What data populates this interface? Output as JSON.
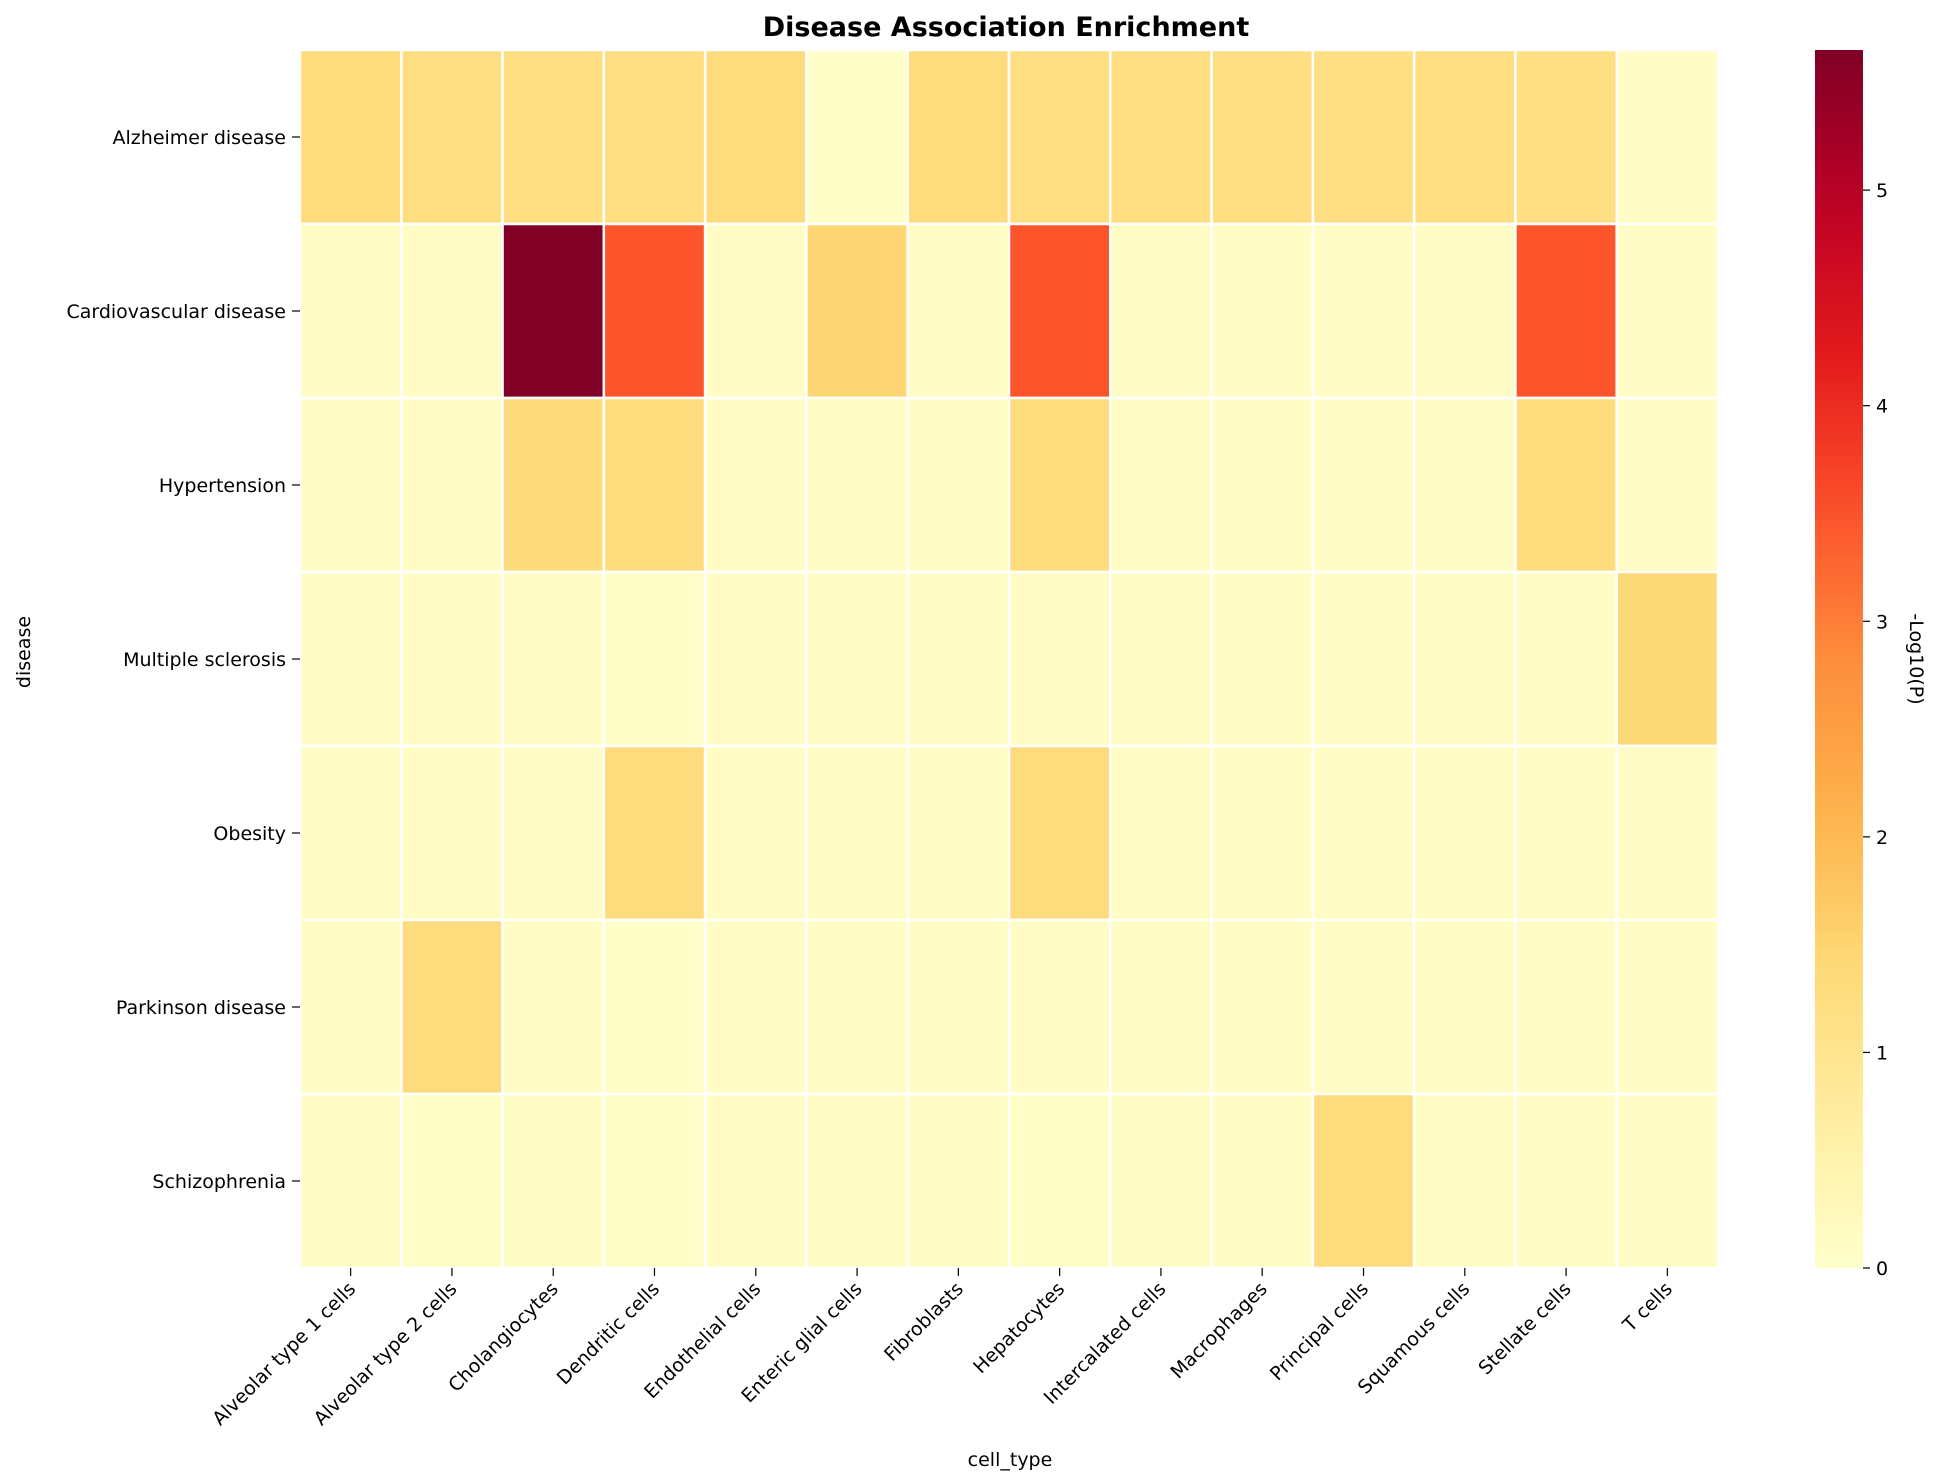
{
  "chart_data": {
    "type": "heatmap",
    "title": "Disease Association Enrichment",
    "xlabel": "cell_type",
    "ylabel": "disease",
    "x": [
      "Alveolar type 1 cells",
      "Alveolar type 2 cells",
      "Cholangiocytes",
      "Dendritic cells",
      "Endothelial cells",
      "Enteric glial cells",
      "Fibroblasts",
      "Hepatocytes",
      "Intercalated cells",
      "Macrophages",
      "Principal cells",
      "Squamous cells",
      "Stellate cells",
      "T cells"
    ],
    "y": [
      "Alzheimer disease",
      "Cardiovascular disease",
      "Hypertension",
      "Multiple sclerosis",
      "Obesity",
      "Parkinson disease",
      "Schizophrenia"
    ],
    "values": [
      [
        1.3,
        1.25,
        1.25,
        1.25,
        1.3,
        0.05,
        1.3,
        1.25,
        1.25,
        1.25,
        1.2,
        1.25,
        1.2,
        0.1
      ],
      [
        0.1,
        0.1,
        5.65,
        3.45,
        0.1,
        1.45,
        0.1,
        3.45,
        0.1,
        0.1,
        0.1,
        0.1,
        3.45,
        0.1
      ],
      [
        0.1,
        0.1,
        1.35,
        1.3,
        0.1,
        0.1,
        0.1,
        1.3,
        0.1,
        0.1,
        0.1,
        0.1,
        1.3,
        0.1
      ],
      [
        0.1,
        0.1,
        0.1,
        0.05,
        0.1,
        0.1,
        0.1,
        0.1,
        0.1,
        0.1,
        0.1,
        0.1,
        0.1,
        1.4
      ],
      [
        0.1,
        0.1,
        0.1,
        1.3,
        0.1,
        0.1,
        0.1,
        1.3,
        0.1,
        0.1,
        0.1,
        0.1,
        0.1,
        0.1
      ],
      [
        0.1,
        1.3,
        0.1,
        0.05,
        0.1,
        0.1,
        0.1,
        0.1,
        0.1,
        0.1,
        0.1,
        0.1,
        0.1,
        0.1
      ],
      [
        0.1,
        0.05,
        0.1,
        0.05,
        0.1,
        0.1,
        0.1,
        0.05,
        0.1,
        0.1,
        1.3,
        0.1,
        0.1,
        0.1
      ]
    ],
    "colorbar": {
      "label": "-Log10(P)",
      "range": [
        0,
        5.65
      ],
      "ticks": [
        0,
        1,
        2,
        3,
        4,
        5
      ],
      "colormap": "YlOrRd"
    },
    "grid": false,
    "cell_border_color": "#ffffff"
  }
}
